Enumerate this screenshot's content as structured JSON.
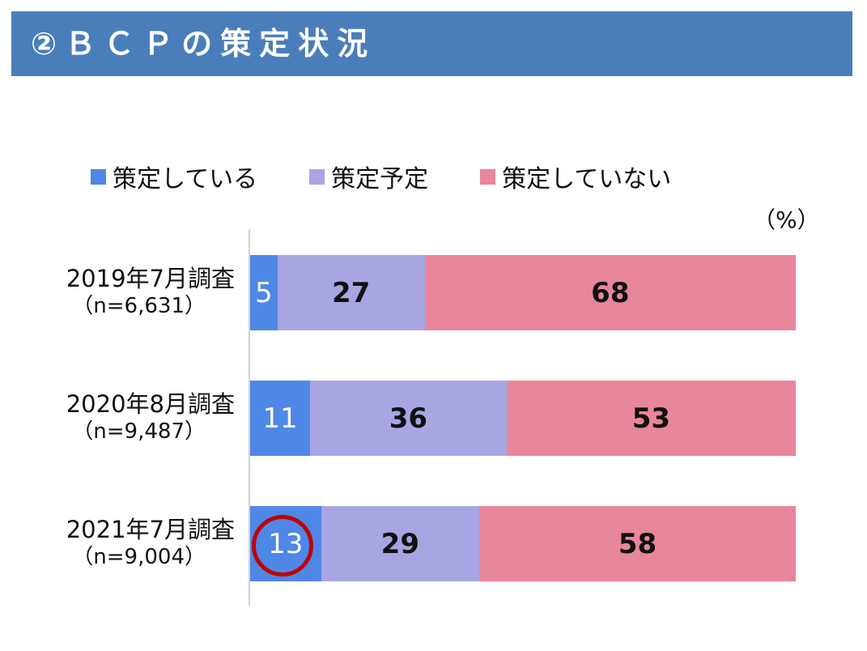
{
  "header": {
    "title": "②ＢＣＰの策定状況"
  },
  "unit_label": "（%）",
  "colors": {
    "banner": "#4a7ebb",
    "series": [
      "#4f87e6",
      "#a7a6e3",
      "#e8869b"
    ],
    "highlight": "#c00000"
  },
  "legend": [
    {
      "label": "策定している",
      "color": "#4f87e6"
    },
    {
      "label": "策定予定",
      "color": "#a7a6e3"
    },
    {
      "label": "策定していない",
      "color": "#e8869b"
    }
  ],
  "chart_data": {
    "type": "bar",
    "orientation": "horizontal",
    "stacked": true,
    "categories": [
      "2019年7月調査",
      "2020年8月調査",
      "2021年7月調査"
    ],
    "sample_sizes": [
      "（n=6,631）",
      "（n=9,487）",
      "（n=9,004）"
    ],
    "series": [
      {
        "name": "策定している",
        "values": [
          5,
          11,
          13
        ]
      },
      {
        "name": "策定予定",
        "values": [
          27,
          36,
          29
        ]
      },
      {
        "name": "策定していない",
        "values": [
          68,
          53,
          58
        ]
      }
    ],
    "xlim": [
      0,
      100
    ],
    "legend_position": "top",
    "highlight": {
      "category_index": 2,
      "series_index": 0
    }
  }
}
